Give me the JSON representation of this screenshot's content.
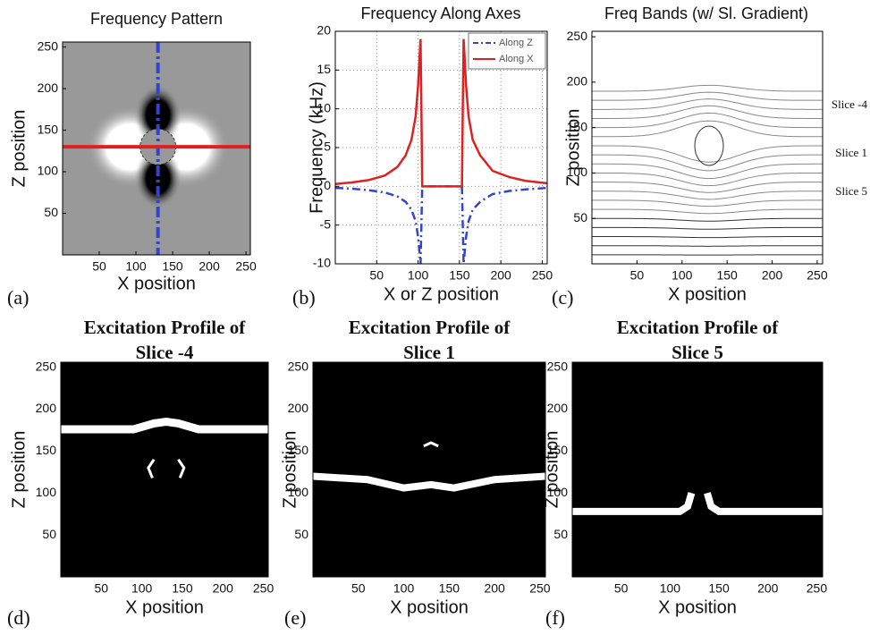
{
  "chart_data": [
    {
      "type": "image",
      "image": "frequency-map",
      "title": "Frequency Pattern",
      "x_label": "X position",
      "y_label": "Z position",
      "panel_label": "(a)",
      "xlim": [
        0,
        256
      ],
      "ylim": [
        0,
        256
      ],
      "xticks": [
        50,
        100,
        150,
        200,
        250
      ],
      "yticks": [
        50,
        100,
        150,
        200,
        250
      ]
    },
    {
      "type": "line",
      "title": "Frequency Along Axes",
      "x_label": "X or Z position",
      "y_label": "Frequency (kHz)",
      "panel_label": "(b)",
      "xlim": [
        0,
        256
      ],
      "ylim": [
        -10,
        20
      ],
      "xticks": [
        50,
        100,
        150,
        200,
        250
      ],
      "yticks": [
        -10,
        -5,
        0,
        5,
        10,
        15,
        20
      ],
      "grid": true,
      "legend": "top-right",
      "x": [
        0,
        20,
        40,
        60,
        75,
        85,
        92,
        97,
        100,
        103,
        104,
        105,
        130,
        153,
        154,
        155,
        158,
        161,
        166,
        175,
        190,
        210,
        230,
        256
      ],
      "series": [
        {
          "name": "Along Z",
          "color": "#3344cc",
          "dash": true,
          "values": [
            -0.2,
            -0.3,
            -0.5,
            -0.8,
            -1.3,
            -2,
            -3,
            -4.5,
            -6.5,
            -10,
            -5,
            0,
            0,
            0,
            -5,
            -10,
            -6.5,
            -4.5,
            -3,
            -2,
            -1,
            -0.6,
            -0.4,
            -0.2
          ]
        },
        {
          "name": "Along X",
          "color": "#dd2222",
          "dash": false,
          "values": [
            0.3,
            0.5,
            0.8,
            1.4,
            2.5,
            4,
            6,
            9,
            13,
            19,
            10,
            0,
            0,
            0,
            10,
            19,
            13,
            9,
            6,
            4,
            2,
            1.2,
            0.7,
            0.4
          ]
        }
      ]
    },
    {
      "type": "image",
      "image": "frequency-bands",
      "title": "Freq Bands (w/ Sl. Gradient)",
      "x_label": "X position",
      "y_label": "Z position",
      "panel_label": "(c)",
      "xlim": [
        0,
        256
      ],
      "ylim": [
        0,
        256
      ],
      "xticks": [
        50,
        100,
        150,
        200,
        250
      ],
      "yticks": [
        50,
        100,
        150,
        200,
        250
      ],
      "annotations": [
        "Slice -4",
        "Slice 1",
        "Slice 5"
      ]
    },
    {
      "type": "image",
      "image": "profile-top",
      "title": [
        "Excitation Profile of",
        "Slice -4"
      ],
      "x_label": "X position",
      "y_label": "Z position",
      "panel_label": "(d)",
      "xlim": [
        0,
        256
      ],
      "ylim": [
        0,
        256
      ],
      "xticks": [
        50,
        100,
        150,
        200,
        250
      ],
      "yticks": [
        50,
        100,
        150,
        200,
        250
      ]
    },
    {
      "type": "image",
      "image": "profile-mid",
      "title": [
        "Excitation Profile of",
        "Slice 1"
      ],
      "x_label": "X position",
      "y_label": "Z position",
      "panel_label": "(e)",
      "xlim": [
        0,
        256
      ],
      "ylim": [
        0,
        256
      ],
      "xticks": [
        50,
        100,
        150,
        200,
        250
      ],
      "yticks": [
        50,
        100,
        150,
        200,
        250
      ]
    },
    {
      "type": "image",
      "image": "profile-low",
      "title": [
        "Excitation Profile of",
        "Slice 5"
      ],
      "x_label": "X position",
      "y_label": "Z position",
      "panel_label": "(f)",
      "xlim": [
        0,
        256
      ],
      "ylim": [
        0,
        256
      ],
      "xticks": [
        50,
        100,
        150,
        200,
        250
      ],
      "yticks": [
        50,
        100,
        150,
        200,
        250
      ]
    }
  ]
}
